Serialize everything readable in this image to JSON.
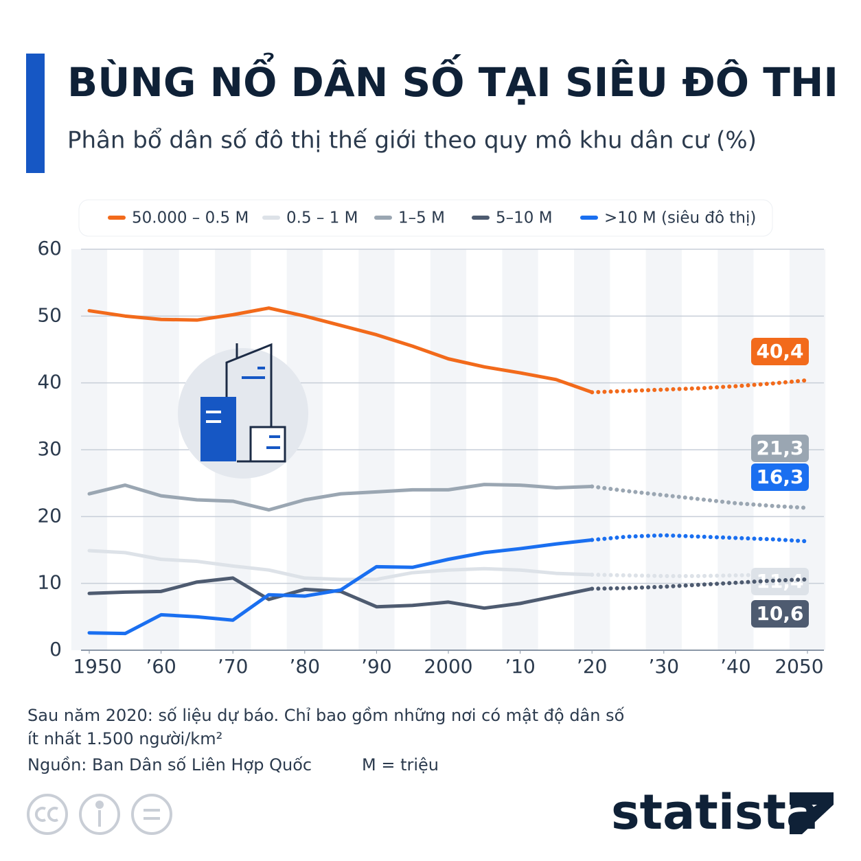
{
  "chart_data": {
    "type": "line",
    "title": "BÙNG NỔ DÂN SỐ TẠI SIÊU ĐÔ THI",
    "subtitle": "Phân bổ dân số đô thị thế giới theo quy mô khu dân cư (%)",
    "x": [
      1950,
      1955,
      1960,
      1965,
      1970,
      1975,
      1980,
      1985,
      1990,
      1995,
      2000,
      2005,
      2010,
      2015,
      2020,
      2025,
      2030,
      2035,
      2040,
      2045,
      2050
    ],
    "projection_start": 2020,
    "series": [
      {
        "name": "50.000 – 0.5 M",
        "color": "#f26a1b",
        "values": [
          50.8,
          50.0,
          49.5,
          49.4,
          50.2,
          51.2,
          50.0,
          48.6,
          47.2,
          45.5,
          43.6,
          42.4,
          41.5,
          40.5,
          38.6,
          38.8,
          39.0,
          39.2,
          39.5,
          39.9,
          40.4
        ],
        "value_labels": [
          null,
          null,
          null,
          null,
          null,
          null,
          null,
          null,
          null,
          null,
          null,
          null,
          null,
          null,
          null,
          null,
          null,
          null,
          null,
          null,
          "40,4"
        ]
      },
      {
        "name": "0.5 – 1 M",
        "color": "#dde2e8",
        "values": [
          14.9,
          14.6,
          13.6,
          13.3,
          12.6,
          12.0,
          10.8,
          10.6,
          10.6,
          11.6,
          12.0,
          12.2,
          12.0,
          11.5,
          11.3,
          11.2,
          11.1,
          11.1,
          11.2,
          11.3,
          11.4
        ],
        "value_labels": [
          null,
          null,
          null,
          null,
          null,
          null,
          null,
          null,
          null,
          null,
          null,
          null,
          null,
          null,
          null,
          null,
          null,
          null,
          null,
          null,
          "11,4"
        ]
      },
      {
        "name": "1–5 M",
        "color": "#9aa6b2",
        "values": [
          23.4,
          24.7,
          23.1,
          22.5,
          22.3,
          21.0,
          22.5,
          23.4,
          23.7,
          24.0,
          24.0,
          24.8,
          24.7,
          24.3,
          24.5,
          23.8,
          23.2,
          22.6,
          22.0,
          21.6,
          21.3
        ],
        "value_labels": [
          null,
          null,
          null,
          null,
          null,
          null,
          null,
          null,
          null,
          null,
          null,
          null,
          null,
          null,
          null,
          null,
          null,
          null,
          null,
          null,
          "21,3"
        ]
      },
      {
        "name": "5–10 M",
        "color": "#4e5b70",
        "values": [
          8.5,
          8.7,
          8.8,
          10.2,
          10.8,
          7.6,
          9.1,
          8.8,
          6.5,
          6.7,
          7.2,
          6.3,
          7.0,
          8.1,
          9.2,
          9.3,
          9.5,
          9.8,
          10.1,
          10.4,
          10.6
        ],
        "value_labels": [
          null,
          null,
          null,
          null,
          null,
          null,
          null,
          null,
          null,
          null,
          null,
          null,
          null,
          null,
          null,
          null,
          null,
          null,
          null,
          null,
          "10,6"
        ]
      },
      {
        "name": ">10 M (siêu đô thị)",
        "color": "#1a6ff0",
        "values": [
          2.6,
          2.5,
          5.3,
          5.0,
          4.5,
          8.3,
          8.1,
          9.0,
          12.5,
          12.4,
          13.6,
          14.6,
          15.2,
          15.9,
          16.5,
          17.0,
          17.2,
          17.0,
          16.8,
          16.6,
          16.3
        ],
        "value_labels": [
          null,
          null,
          null,
          null,
          null,
          null,
          null,
          null,
          null,
          null,
          null,
          null,
          null,
          null,
          null,
          null,
          null,
          null,
          null,
          null,
          "16,3"
        ]
      }
    ],
    "xlim": [
      1950,
      2050
    ],
    "xticks": [
      1950,
      {
        "value": 1960,
        "label": "’60"
      },
      {
        "value": 1970,
        "label": "’70"
      },
      {
        "value": 1980,
        "label": "’80"
      },
      {
        "value": 1990,
        "label": "’90"
      },
      2000,
      {
        "value": 2010,
        "label": "’10"
      },
      {
        "value": 2020,
        "label": "’20"
      },
      {
        "value": 2030,
        "label": "’30"
      },
      {
        "value": 2040,
        "label": "’40"
      },
      2050
    ],
    "ylim": [
      0,
      60
    ],
    "yticks": [
      0,
      10,
      20,
      30,
      40,
      50,
      60
    ],
    "grid": true,
    "note": [
      "Sau năm 2020: số liệu dự báo. Chỉ bao gồm những nơi có mật độ dân số",
      "ít nhất 1.500 người/km²"
    ],
    "source": "Nguồn: Ban Dân số Liên Hợp Quốc",
    "unit_note": "M = triệu",
    "brand": "statista"
  }
}
